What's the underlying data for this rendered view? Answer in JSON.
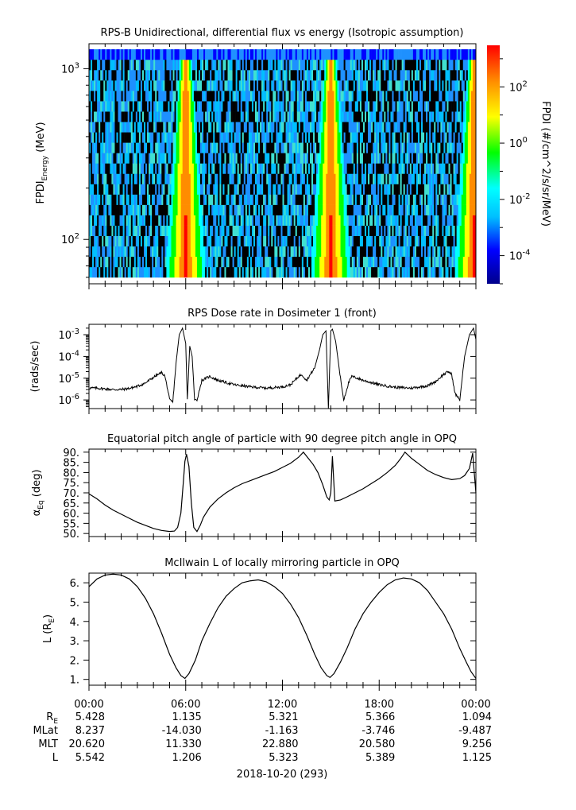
{
  "chart_data": [
    {
      "type": "heatmap",
      "title": "RPS-B  Unidirectional, differential flux vs energy (Isotropic assumption)",
      "ylabel_main": "FPDI",
      "ylabel_sub": "Energy",
      "ylabel_unit": " (MeV)",
      "yscale": "log",
      "ylim": [
        55,
        1400
      ],
      "yticks": [
        {
          "value": 100,
          "base": "10",
          "exp": "2"
        },
        {
          "value": 1000,
          "base": "10",
          "exp": "3"
        }
      ],
      "energy_range_mev": [
        60,
        1300
      ],
      "x_hours": [
        0,
        24
      ],
      "bright_bands_hours": [
        {
          "center": 6.0,
          "dip": 5.9
        },
        {
          "center": 15.0,
          "dip": 14.9
        },
        {
          "center": 23.9,
          "dip": 23.9
        }
      ],
      "colorbar": {
        "label": "FPDI (#/cm^2/s/sr/MeV)",
        "scale": "log",
        "range": [
          1e-05,
          3000
        ],
        "ticks": [
          {
            "value": 0.0001,
            "base": "10",
            "exp": "-4"
          },
          {
            "value": 0.01,
            "base": "10",
            "exp": "-2"
          },
          {
            "value": 1,
            "base": "10",
            "exp": "0"
          },
          {
            "value": 100,
            "base": "10",
            "exp": "2"
          }
        ],
        "colors": [
          "#00008b",
          "#0000ff",
          "#00bfff",
          "#00ffff",
          "#00ff00",
          "#ffff00",
          "#ff8c00",
          "#ff0000"
        ]
      }
    },
    {
      "type": "line",
      "title": "RPS  Dose rate in Dosimeter 1 (front)",
      "ylabel": "(rads/sec)",
      "yscale": "log",
      "ylim": [
        4e-07,
        0.003
      ],
      "yticks": [
        {
          "value": 1e-06,
          "base": "10",
          "exp": "-6"
        },
        {
          "value": 1e-05,
          "base": "10",
          "exp": "-5"
        },
        {
          "value": 0.0001,
          "base": "10",
          "exp": "-4"
        },
        {
          "value": 0.001,
          "base": "10",
          "exp": "-3"
        }
      ],
      "x": [
        0,
        0.5,
        1,
        1.5,
        2,
        2.5,
        3,
        3.5,
        4,
        4.5,
        4.7,
        4.85,
        5.0,
        5.2,
        5.4,
        5.6,
        5.8,
        6.0,
        6.1,
        6.25,
        6.4,
        6.55,
        6.7,
        7.0,
        7.5,
        8,
        9,
        10,
        11,
        12,
        12.5,
        13.0,
        13.2,
        13.5,
        14.0,
        14.3,
        14.5,
        14.7,
        14.85,
        15.0,
        15.1,
        15.3,
        15.6,
        15.8,
        16.1,
        16.3,
        16.5,
        17,
        18,
        19,
        20,
        21,
        21.5,
        22.0,
        22.3,
        22.5,
        22.7,
        23.0,
        23.3,
        23.6,
        23.85,
        24.0
      ],
      "y": [
        3.5e-06,
        3.5e-06,
        3.2e-06,
        3e-06,
        3e-06,
        3.4e-06,
        4.2e-06,
        6e-06,
        1.1e-05,
        1.8e-05,
        1.3e-05,
        4e-06,
        1e-06,
        8e-07,
        5e-05,
        0.001,
        0.002,
        0.0004,
        1e-06,
        0.0003,
        0.0001,
        1e-06,
        1e-06,
        8e-06,
        1.2e-05,
        8e-06,
        5e-06,
        4e-06,
        3.5e-06,
        4e-06,
        5e-06,
        1.2e-05,
        1.5e-05,
        8e-06,
        3e-05,
        0.0002,
        0.001,
        0.0015,
        4e-07,
        0.0015,
        0.0018,
        0.0005,
        1e-05,
        1e-06,
        6e-06,
        1.2e-05,
        1.1e-05,
        8e-06,
        5e-06,
        3.8e-06,
        3.5e-06,
        4.5e-06,
        7e-06,
        1.5e-05,
        2e-05,
        1.5e-05,
        2e-06,
        1e-06,
        0.0001,
        0.001,
        0.002,
        0.0006
      ]
    },
    {
      "type": "line",
      "title": "Equatorial pitch angle of particle with 90 degree pitch angle in OPQ",
      "ylabel_main": "α",
      "ylabel_sub": "Eq",
      "ylabel_unit": " (deg)",
      "ylim": [
        48.5,
        91.5
      ],
      "yticks": [
        50,
        55,
        60,
        65,
        70,
        75,
        80,
        85,
        90
      ],
      "ytick_labels": [
        "50.",
        "55.",
        "60.",
        "65.",
        "70.",
        "75.",
        "80.",
        "85.",
        "90."
      ],
      "x": [
        0,
        0.5,
        1,
        1.5,
        2,
        2.5,
        3,
        3.5,
        4,
        4.5,
        5.0,
        5.3,
        5.5,
        5.7,
        5.85,
        5.95,
        6.05,
        6.2,
        6.35,
        6.5,
        6.7,
        6.9,
        7.1,
        7.5,
        8,
        8.5,
        9,
        9.5,
        10,
        10.5,
        11,
        11.5,
        12,
        12.5,
        13.0,
        13.3,
        13.6,
        13.9,
        14.2,
        14.5,
        14.75,
        14.9,
        15.0,
        15.1,
        15.25,
        15.6,
        16,
        16.5,
        17,
        17.5,
        18,
        18.5,
        19.0,
        19.3,
        19.6,
        20,
        20.5,
        21,
        21.5,
        22,
        22.5,
        23,
        23.3,
        23.6,
        23.8,
        24.0
      ],
      "y": [
        69.5,
        67,
        64,
        61.5,
        59.5,
        57.5,
        55.5,
        54,
        52.5,
        51.5,
        51,
        51.2,
        53,
        60,
        75,
        85.5,
        89,
        83,
        65,
        53,
        51,
        54,
        58,
        63,
        67,
        70,
        72.5,
        74.5,
        76,
        77.5,
        79,
        80.5,
        82.5,
        84.5,
        87.5,
        90,
        87,
        84,
        80,
        74,
        68,
        66.5,
        70,
        88,
        66,
        66.5,
        68,
        70,
        72,
        74.5,
        77,
        80,
        83.5,
        86.5,
        90,
        87,
        84,
        81,
        79,
        77.5,
        76.5,
        77,
        78.5,
        82,
        89.5,
        70
      ]
    },
    {
      "type": "line",
      "title": "McIlwain L of locally mirroring particle in OPQ",
      "ylabel_main": "L (R",
      "ylabel_sub": "E",
      "ylabel_unit": ")",
      "ylim": [
        0.7,
        6.5
      ],
      "yticks": [
        1,
        2,
        3,
        4,
        5,
        6
      ],
      "ytick_labels": [
        "1.",
        "2.",
        "3.",
        "4.",
        "5.",
        "6."
      ],
      "x": [
        0,
        0.5,
        1,
        1.5,
        2,
        2.5,
        3,
        3.5,
        4,
        4.5,
        5.0,
        5.4,
        5.7,
        5.95,
        6.2,
        6.6,
        7.0,
        7.5,
        8,
        8.5,
        9,
        9.5,
        10,
        10.5,
        11,
        11.5,
        12,
        12.5,
        13,
        13.5,
        14.0,
        14.4,
        14.75,
        14.95,
        15.2,
        15.6,
        16,
        16.5,
        17,
        17.5,
        18,
        18.5,
        19,
        19.5,
        20,
        20.5,
        21,
        21.5,
        22,
        22.5,
        23,
        23.4,
        23.7,
        24.0
      ],
      "y": [
        5.8,
        6.2,
        6.4,
        6.45,
        6.4,
        6.2,
        5.8,
        5.2,
        4.4,
        3.4,
        2.3,
        1.6,
        1.2,
        1.05,
        1.3,
        2.0,
        3.0,
        3.9,
        4.7,
        5.3,
        5.7,
        6.0,
        6.1,
        6.15,
        6.05,
        5.8,
        5.45,
        4.9,
        4.2,
        3.3,
        2.3,
        1.6,
        1.2,
        1.1,
        1.3,
        1.9,
        2.6,
        3.6,
        4.4,
        5.0,
        5.5,
        5.9,
        6.15,
        6.25,
        6.2,
        6.0,
        5.6,
        5.0,
        4.4,
        3.6,
        2.6,
        1.9,
        1.4,
        1.05
      ]
    }
  ],
  "x_axis": {
    "tick_labels": [
      "00:00",
      "06:00",
      "12:00",
      "18:00",
      "00:00"
    ],
    "tick_hours": [
      0,
      6,
      12,
      18,
      24
    ],
    "date_label": "2018-10-20 (293)"
  },
  "ephemeris": {
    "rows": [
      {
        "label_main": "R",
        "label_sub": "E",
        "values": [
          "5.428",
          "1.135",
          "5.321",
          "5.366",
          "1.094"
        ]
      },
      {
        "label_main": "MLat",
        "label_sub": "",
        "values": [
          "8.237",
          "-14.030",
          "-1.163",
          "-3.746",
          "-9.487"
        ]
      },
      {
        "label_main": "MLT",
        "label_sub": "",
        "values": [
          "20.620",
          "11.330",
          "22.880",
          "20.580",
          "9.256"
        ]
      },
      {
        "label_main": "L",
        "label_sub": "",
        "values": [
          "5.542",
          "1.206",
          "5.323",
          "5.389",
          "1.125"
        ]
      }
    ]
  }
}
